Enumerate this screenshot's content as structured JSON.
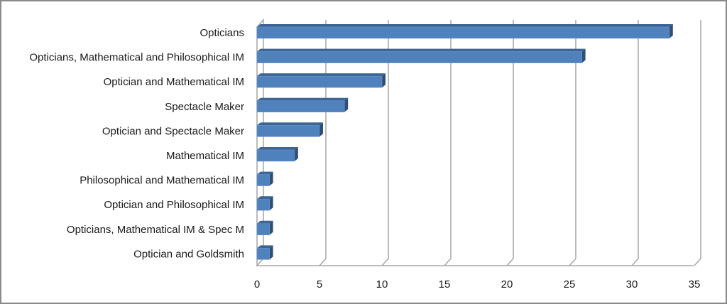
{
  "chart_data": {
    "type": "bar",
    "orientation": "horizontal",
    "style": "3d-clustered-bar",
    "title": "",
    "xlabel": "",
    "ylabel": "",
    "categories": [
      "Opticians",
      "Opticians, Mathematical and Philosophical IM",
      "Optician and Mathematical IM",
      "Spectacle Maker",
      "Optician and Spectacle Maker",
      "Mathematical IM",
      "Philosophical and Mathematical IM",
      "Optician and Philosophical IM",
      "Opticians, Mathematical IM & Spec M",
      "Optician and Goldsmith"
    ],
    "values": [
      33,
      26,
      10,
      7,
      5,
      3,
      1,
      1,
      1,
      1
    ],
    "xlim": [
      0,
      35
    ],
    "x_ticks": [
      "0",
      "5",
      "10",
      "15",
      "20",
      "25",
      "30",
      "35"
    ],
    "grid": true,
    "legend": null,
    "colors": {
      "bar_front": "#4f81bd",
      "bar_top": "#3c6494",
      "bar_side": "#2e4f78",
      "grid": "#a6a6a6",
      "border": "#8a8a8a"
    }
  }
}
